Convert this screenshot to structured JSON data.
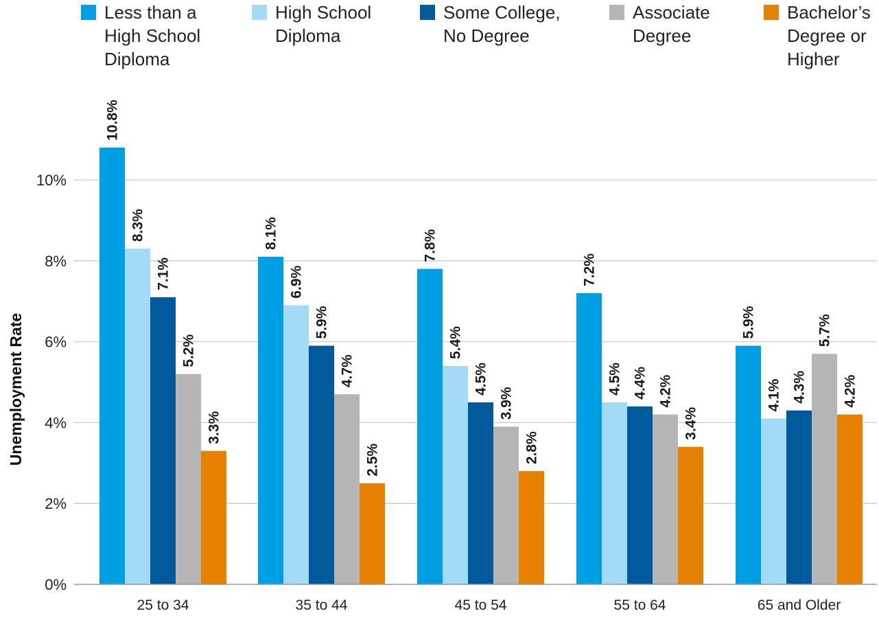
{
  "chart_data": {
    "type": "bar",
    "ylabel": "Unemployment Rate",
    "ylim": [
      0,
      11
    ],
    "yticks": [
      0,
      2,
      4,
      6,
      8,
      10
    ],
    "ytick_labels": [
      "0%",
      "2%",
      "4%",
      "6%",
      "8%",
      "10%"
    ],
    "grid": true,
    "legend_position": "top",
    "value_suffix": "%",
    "categories": [
      "25 to 34",
      "35 to 44",
      "45 to 54",
      "55 to 64",
      "65 and Older"
    ],
    "series": [
      {
        "name": "Less than a High School Diploma",
        "legend_lines": [
          "Less than a",
          "High School",
          "Diploma"
        ],
        "color": "#009fe3",
        "values": [
          10.8,
          8.1,
          7.8,
          7.2,
          5.9
        ]
      },
      {
        "name": "High School Diploma",
        "legend_lines": [
          "High School",
          "Diploma"
        ],
        "color": "#a3dbf6",
        "values": [
          8.3,
          6.9,
          5.4,
          4.5,
          4.1
        ]
      },
      {
        "name": "Some College, No Degree",
        "legend_lines": [
          "Some College,",
          "No Degree"
        ],
        "color": "#005a9c",
        "values": [
          7.1,
          5.9,
          4.5,
          4.4,
          4.3
        ]
      },
      {
        "name": "Associate Degree",
        "legend_lines": [
          "Associate",
          "Degree"
        ],
        "color": "#b5b5b5",
        "values": [
          5.2,
          4.7,
          3.9,
          4.2,
          5.7
        ]
      },
      {
        "name": "Bachelor’s Degree or Higher",
        "legend_lines": [
          "Bachelor’s",
          "Degree or",
          "Higher"
        ],
        "color": "#e68000",
        "values": [
          3.3,
          2.5,
          2.8,
          3.4,
          4.2
        ]
      }
    ]
  }
}
